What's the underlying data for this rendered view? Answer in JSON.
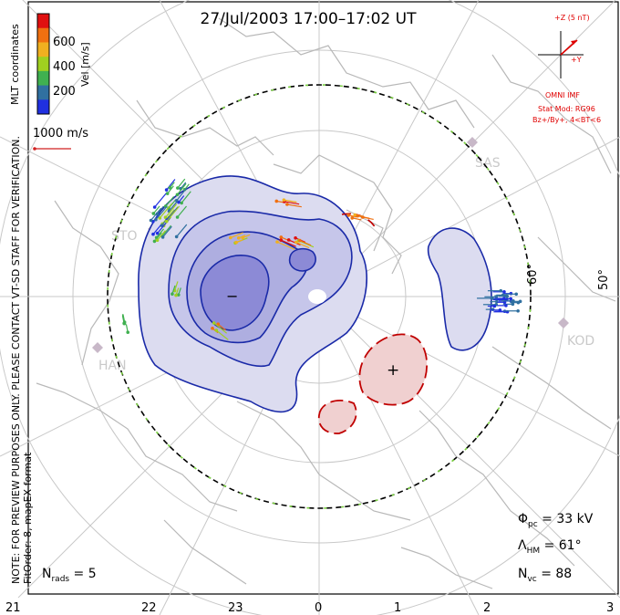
{
  "title": "27/Jul/2003 17:00–17:02 UT",
  "colorbar": {
    "unit_label": "Vel [m/s]",
    "ticks": [
      "600",
      "400",
      "200"
    ],
    "colors": [
      "#e01010",
      "#f07010",
      "#f0b020",
      "#a0d020",
      "#40b050",
      "#3070a0",
      "#2030e0"
    ]
  },
  "coord_label": "MLT coordinates",
  "vector_scale_label": "1000 m/s",
  "preview_note": "NOTE: FOR PREVIEW PURPOSES ONLY. PLEASE CONTACT VT-SD STAFF FOR VERIFICATION.",
  "fit_note": "FitOrder: 8, mapEX format",
  "imf": {
    "z_label": "+Z (5 nT)",
    "y_label": "+Y",
    "source": "OMNI IMF",
    "model": "Stat Mod: RG96",
    "condition": "Bz+/By+, 4<BT<6"
  },
  "radar_sites": [
    "SAS",
    "KOD",
    "STO",
    "HAN"
  ],
  "lat_labels": [
    "60°",
    "50°"
  ],
  "mlt_labels": [
    "21",
    "22",
    "23",
    "0",
    "1",
    "2",
    "3"
  ],
  "potential_minus": "−",
  "potential_plus": "+",
  "stats": {
    "phi_sym": "Φ",
    "phi_sub": "pc",
    "phi_value": " = 33 kV",
    "lambda_sym": "Λ",
    "lambda_sub": "HM",
    "lambda_value": " = 61°",
    "nvc_sym": "N",
    "nvc_sub": "vc",
    "nvc_value": " = 88",
    "nrads_sym": "N",
    "nrads_sub": "rads",
    "nrads_value": " = 5"
  }
}
